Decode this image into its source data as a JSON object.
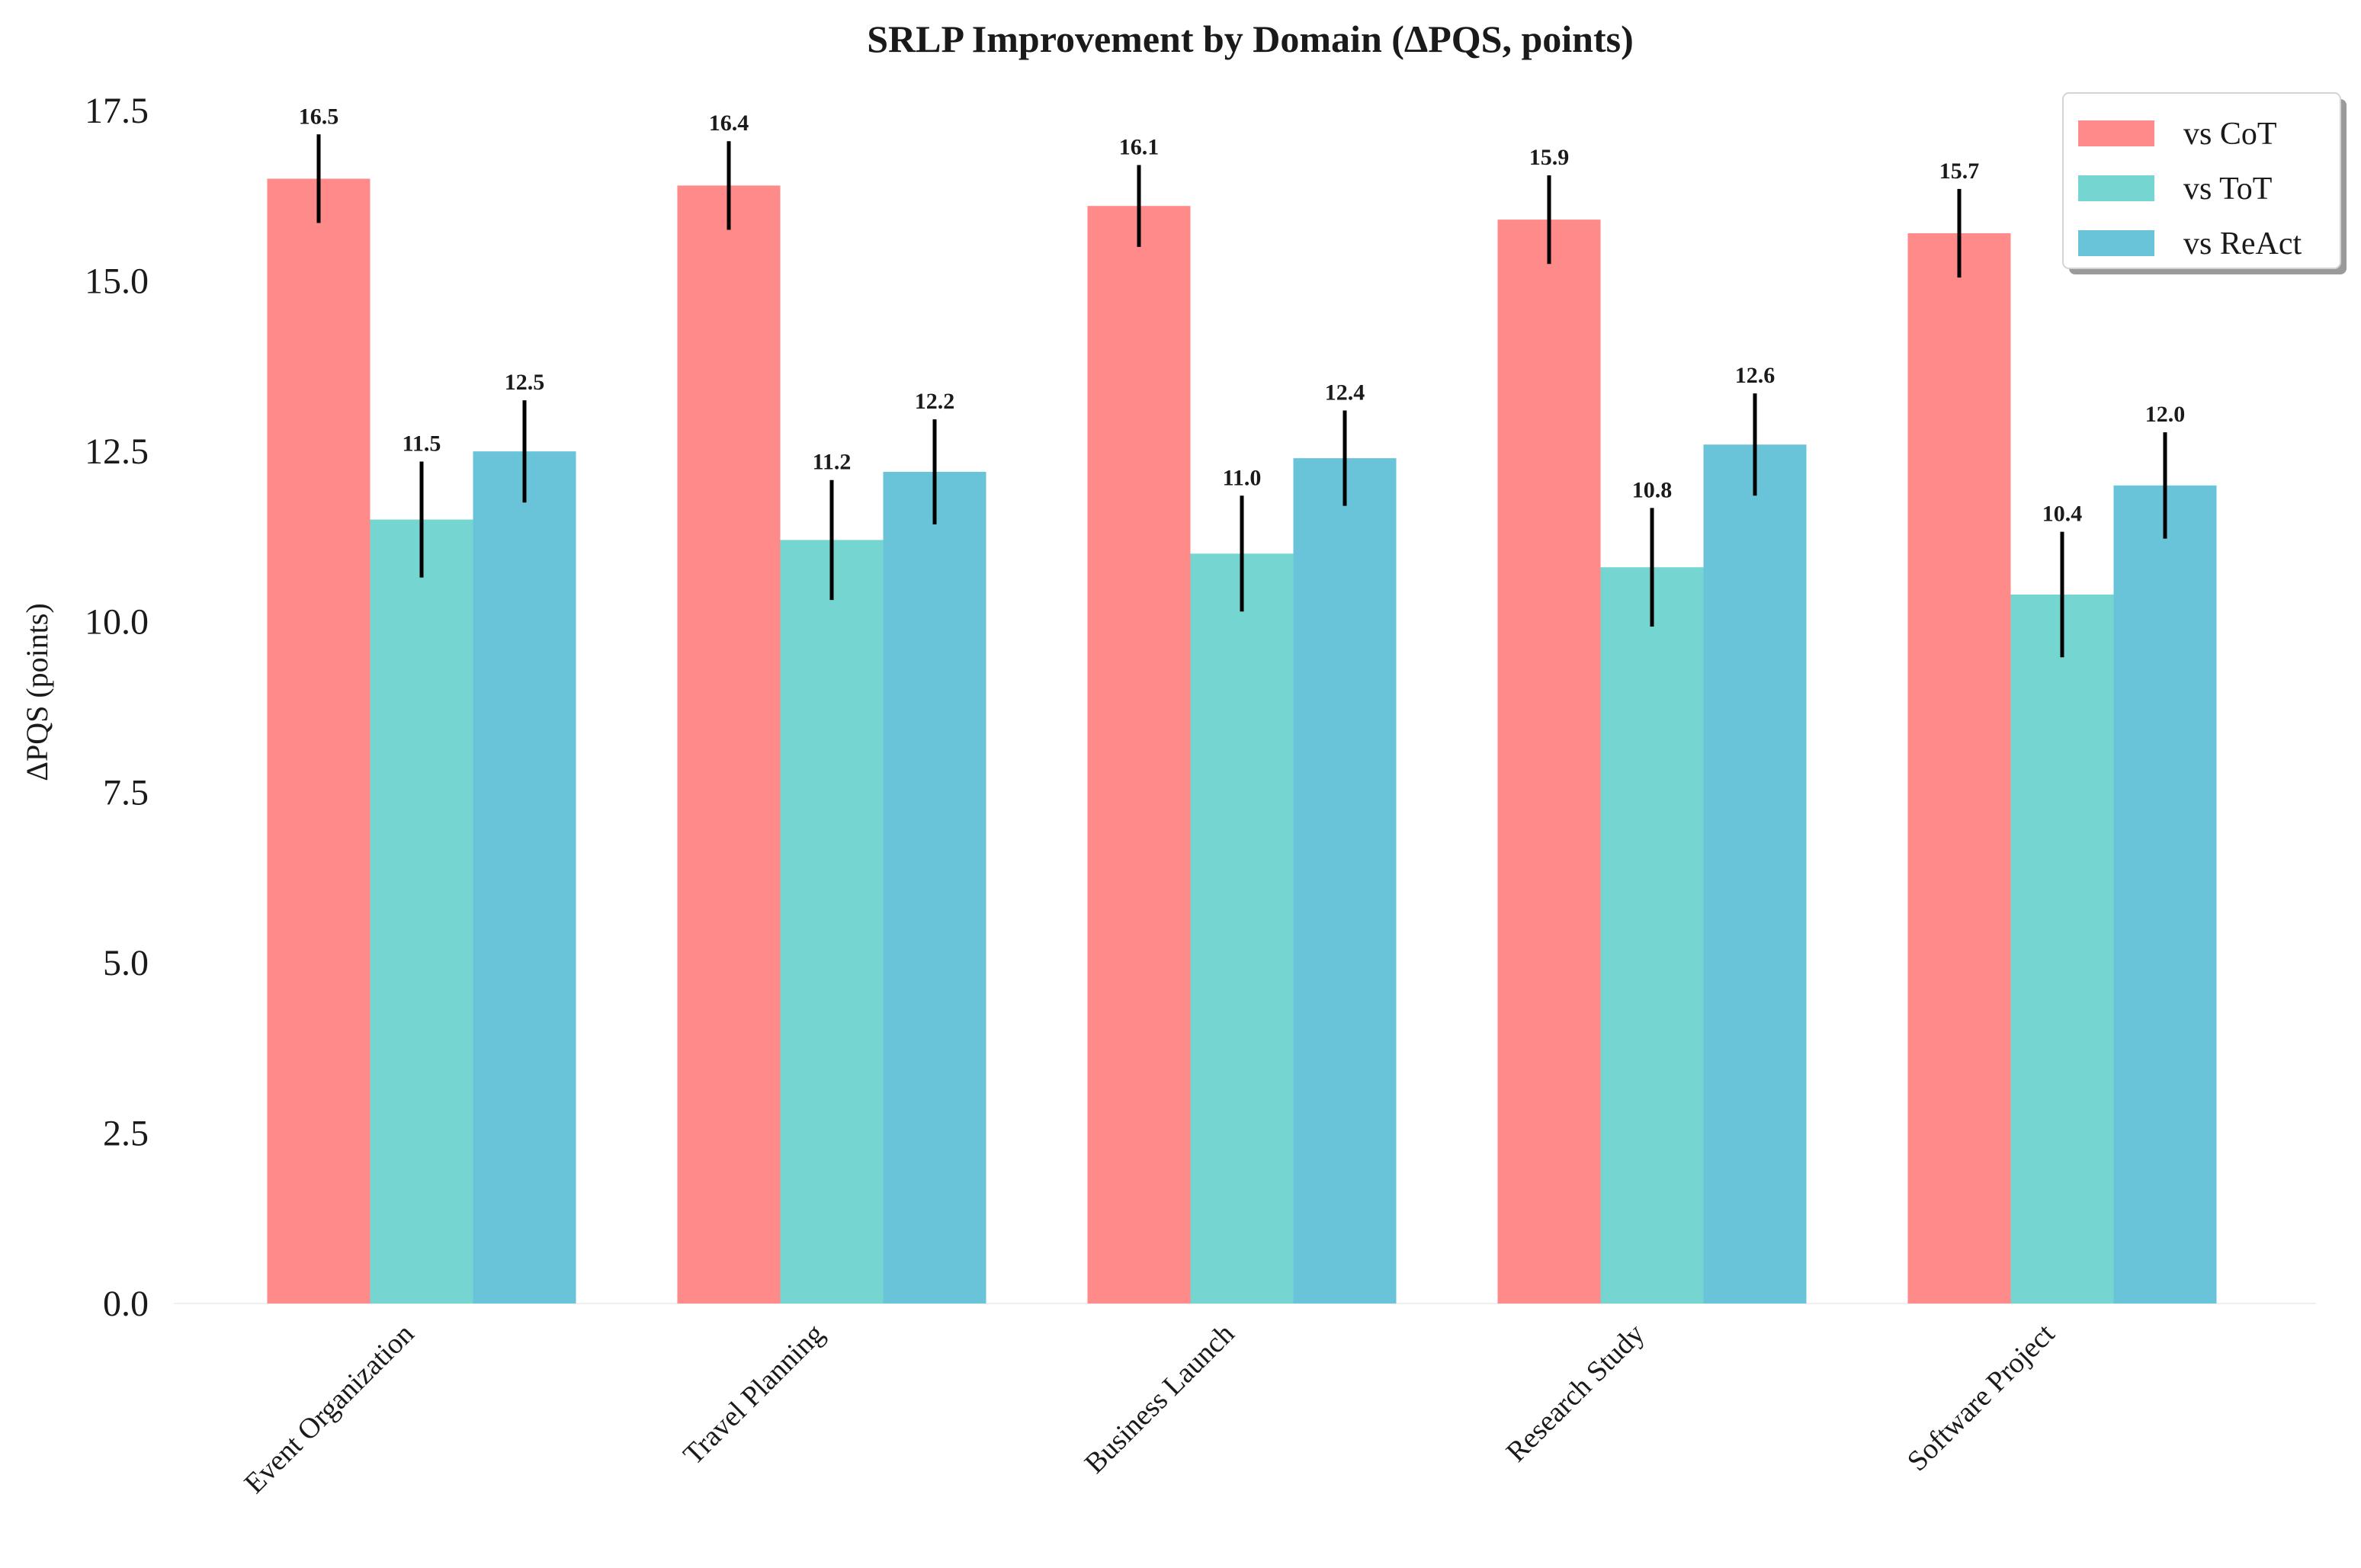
{
  "chart_data": {
    "type": "bar",
    "title": "SRLP Improvement by Domain (ΔPQS, points)",
    "xlabel": "",
    "ylabel": "ΔPQS (points)",
    "ylim": [
      0,
      17.5
    ],
    "yticks": [
      "0.0",
      "2.5",
      "5.0",
      "7.5",
      "10.0",
      "12.5",
      "15.0",
      "17.5"
    ],
    "categories": [
      "Event Organization",
      "Travel Planning",
      "Business Launch",
      "Research Study",
      "Software Project"
    ],
    "series": [
      {
        "name": "vs CoT",
        "color": "#ff8a8a",
        "values": [
          16.5,
          16.4,
          16.1,
          15.9,
          15.7
        ],
        "labels": [
          "16.5",
          "16.4",
          "16.1",
          "15.9",
          "15.7"
        ],
        "errors": [
          0.65,
          0.65,
          0.6,
          0.65,
          0.65
        ]
      },
      {
        "name": "vs ToT",
        "color": "#75d6d1",
        "values": [
          11.5,
          11.2,
          11.0,
          10.8,
          10.4
        ],
        "labels": [
          "11.5",
          "11.2",
          "11.0",
          "10.8",
          "10.4"
        ],
        "errors": [
          0.85,
          0.88,
          0.85,
          0.87,
          0.92
        ]
      },
      {
        "name": "vs ReAct",
        "color": "#6ac4d9",
        "values": [
          12.5,
          12.2,
          12.4,
          12.6,
          12.0
        ],
        "labels": [
          "12.5",
          "12.2",
          "12.4",
          "12.6",
          "12.0"
        ],
        "errors": [
          0.75,
          0.77,
          0.7,
          0.75,
          0.78
        ]
      }
    ],
    "legend_position": "top-right",
    "grid": false
  }
}
